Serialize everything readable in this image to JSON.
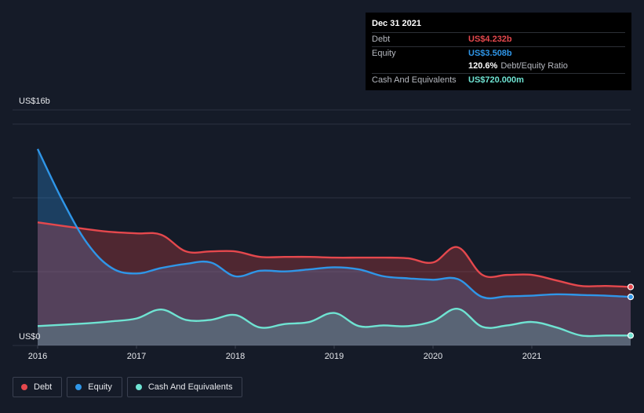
{
  "tooltip": {
    "date": "Dec 31 2021",
    "rows": [
      {
        "label": "Debt",
        "value": "US$4.232b",
        "color": "#e5484d"
      },
      {
        "label": "Equity",
        "value": "US$3.508b",
        "color": "#2f96e8"
      },
      {
        "label": "",
        "value": "120.6%",
        "sub": "Debt/Equity Ratio",
        "color": "#ffffff"
      },
      {
        "label": "Cash And Equivalents",
        "value": "US$720.000m",
        "color": "#6fe3d2"
      }
    ]
  },
  "legend": [
    {
      "label": "Debt",
      "color": "#e5484d"
    },
    {
      "label": "Equity",
      "color": "#2f96e8"
    },
    {
      "label": "Cash And Equivalents",
      "color": "#6fe3d2"
    }
  ],
  "chart_data": {
    "type": "area",
    "y_top_label": "US$16b",
    "y_bottom_label": "US$0",
    "ylim": [
      0,
      16
    ],
    "xlim": [
      2016,
      2022
    ],
    "x_ticks": [
      "2016",
      "2017",
      "2018",
      "2019",
      "2020",
      "2021"
    ],
    "series": [
      {
        "name": "Debt",
        "color": "#e5484d",
        "x": [
          2016.0,
          2016.5,
          2016.75,
          2017.0,
          2017.25,
          2017.5,
          2017.75,
          2018.0,
          2018.25,
          2018.5,
          2018.75,
          2019.0,
          2019.25,
          2019.5,
          2019.75,
          2020.0,
          2020.25,
          2020.5,
          2020.75,
          2021.0,
          2021.25,
          2021.5,
          2021.75,
          2022.0
        ],
        "values": [
          8.9,
          8.4,
          8.2,
          8.1,
          8.0,
          6.8,
          6.8,
          6.8,
          6.4,
          6.4,
          6.4,
          6.35,
          6.35,
          6.35,
          6.3,
          6.0,
          7.1,
          5.1,
          5.1,
          5.1,
          4.7,
          4.3,
          4.3,
          4.23
        ]
      },
      {
        "name": "Equity",
        "color": "#2f96e8",
        "x": [
          2016.0,
          2016.25,
          2016.5,
          2016.75,
          2017.0,
          2017.25,
          2017.5,
          2017.75,
          2018.0,
          2018.25,
          2018.5,
          2018.75,
          2019.0,
          2019.25,
          2019.5,
          2019.75,
          2020.0,
          2020.25,
          2020.5,
          2020.75,
          2021.0,
          2021.25,
          2021.5,
          2021.75,
          2022.0
        ],
        "values": [
          14.2,
          10.5,
          7.4,
          5.6,
          5.2,
          5.6,
          5.9,
          6.0,
          5.0,
          5.4,
          5.35,
          5.5,
          5.65,
          5.5,
          5.0,
          4.85,
          4.75,
          4.8,
          3.5,
          3.55,
          3.6,
          3.7,
          3.65,
          3.6,
          3.51
        ]
      },
      {
        "name": "Cash And Equivalents",
        "color": "#6fe3d2",
        "x": [
          2016.0,
          2016.5,
          2016.75,
          2017.0,
          2017.25,
          2017.5,
          2017.75,
          2018.0,
          2018.25,
          2018.5,
          2018.75,
          2019.0,
          2019.25,
          2019.5,
          2019.75,
          2020.0,
          2020.25,
          2020.5,
          2020.75,
          2021.0,
          2021.25,
          2021.5,
          2021.75,
          2022.0
        ],
        "values": [
          1.4,
          1.6,
          1.75,
          1.95,
          2.6,
          1.85,
          1.85,
          2.2,
          1.3,
          1.55,
          1.7,
          2.35,
          1.4,
          1.45,
          1.4,
          1.75,
          2.65,
          1.35,
          1.45,
          1.7,
          1.3,
          0.72,
          0.72,
          0.72
        ]
      }
    ]
  }
}
